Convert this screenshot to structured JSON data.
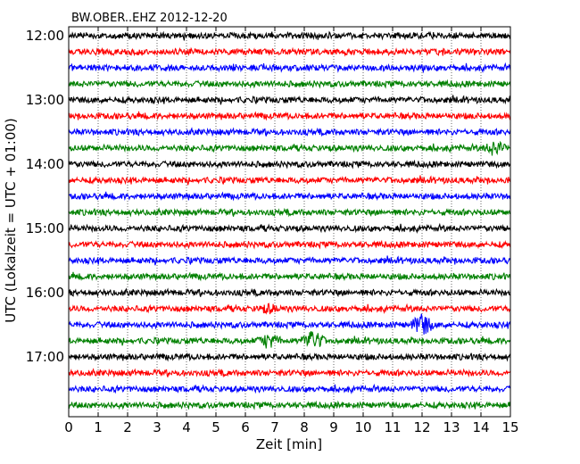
{
  "chart_data": {
    "type": "line",
    "title": "BW.OBER..EHZ 2012-12-20",
    "xlabel": "Zeit  [min]",
    "ylabel": "UTC (Lokalzeit = UTC + 01:00)",
    "xlim": [
      0,
      15
    ],
    "x_ticks": [
      "0",
      "1",
      "2",
      "3",
      "4",
      "5",
      "6",
      "7",
      "8",
      "9",
      "10",
      "11",
      "12",
      "13",
      "14",
      "15"
    ],
    "y_tick_labels": [
      "12:00",
      "13:00",
      "14:00",
      "15:00",
      "16:00",
      "17:00"
    ],
    "grid": "vertical dotted at each minute",
    "trace_interval_minutes": 15,
    "trace_start_times": [
      "12:00",
      "12:15",
      "12:30",
      "12:45",
      "13:00",
      "13:15",
      "13:30",
      "13:45",
      "14:00",
      "14:15",
      "14:30",
      "14:45",
      "15:00",
      "15:15",
      "15:30",
      "15:45",
      "16:00",
      "16:15",
      "16:30",
      "16:45",
      "17:00",
      "17:15",
      "17:30",
      "17:45"
    ],
    "trace_colors": [
      "#000000",
      "#ff0000",
      "#0000ff",
      "#008000"
    ],
    "events": [
      {
        "trace_index": 18,
        "x_min": 12.0,
        "amplitude": "high"
      },
      {
        "trace_index": 19,
        "x_min": 6.8,
        "amplitude": "medium"
      },
      {
        "trace_index": 19,
        "x_min": 8.3,
        "amplitude": "high"
      },
      {
        "trace_index": 7,
        "x_min": 14.5,
        "amplitude": "medium"
      },
      {
        "trace_index": 17,
        "x_min": 6.8,
        "amplitude": "low"
      }
    ]
  }
}
